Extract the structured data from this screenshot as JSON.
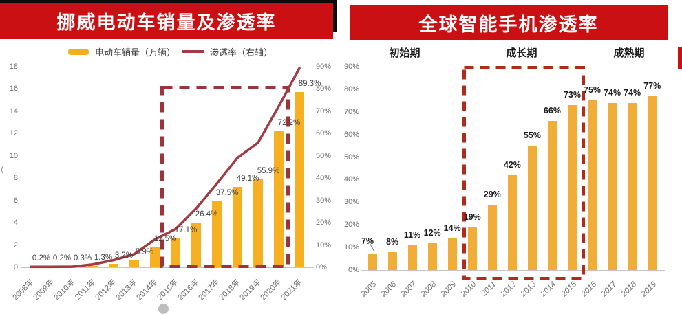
{
  "colors": {
    "banner_red": "#cb1013",
    "banner_shadow_black": "#0b0b0b",
    "title_text": "#ffffff",
    "bar_gold_left": "#f6b021",
    "bar_gold_right": "#f0ae38",
    "line_maroon": "#a13b44",
    "highlight_box_left": "#9c343a",
    "highlight_box_right": "#b02a1e",
    "axis_text_gray": "#6e6e6e",
    "axis_line_gray": "#c6c6c6"
  },
  "left_panel": {
    "title": "挪威电动车销量及渗透率",
    "legend": {
      "bar_label": "电动车销量（万辆）",
      "line_label": "渗透率（右轴）"
    },
    "cropped_axis_fragment": "（",
    "chart_data": {
      "type": "bar+line",
      "title": "挪威电动车销量及渗透率",
      "categories": [
        "2008年",
        "2009年",
        "2010年",
        "2011年",
        "2012年",
        "2013年",
        "2014年",
        "2015年",
        "2016年",
        "2017年",
        "2018年",
        "2019年",
        "2020年",
        "2021年"
      ],
      "series": [
        {
          "name": "电动车销量（万辆）",
          "type": "bar",
          "axis": "left",
          "values": [
            0.03,
            0.03,
            0.06,
            0.15,
            0.3,
            0.6,
            1.8,
            2.6,
            4.0,
            5.9,
            7.2,
            7.9,
            12.2,
            15.7
          ]
        },
        {
          "name": "渗透率（右轴）",
          "type": "line",
          "axis": "right",
          "values": [
            0.2,
            0.2,
            0.3,
            1.3,
            3.2,
            5.9,
            12.5,
            17.1,
            26.4,
            37.5,
            49.1,
            55.9,
            72.2,
            89.3
          ],
          "point_labels": [
            "0.2%",
            "0.2%",
            "0.3%",
            "1.3%",
            "3.2%",
            "5.9%",
            "12.5%",
            "17.1%",
            "26.4%",
            "37.5%",
            "49.1%",
            "55.9%",
            "72.2%",
            "89.3%"
          ]
        }
      ],
      "left_axis": {
        "min": 0,
        "max": 18,
        "step": 2,
        "suffix": ""
      },
      "right_axis": {
        "min": 0,
        "max": 90,
        "step": 10,
        "suffix": "%"
      },
      "grid": false,
      "legend_position": "top",
      "highlight_box": {
        "from": "2015年",
        "to": "2021年",
        "style": "dashed-red"
      }
    }
  },
  "right_panel": {
    "title": "全球智能手机渗透率",
    "phase_labels": [
      "初始期",
      "成长期",
      "成熟期"
    ],
    "chart_data": {
      "type": "bar",
      "title": "全球智能手机渗透率",
      "categories": [
        "2005",
        "2006",
        "2007",
        "2008",
        "2009",
        "2010",
        "2011",
        "2012",
        "2013",
        "2014",
        "2015",
        "2016",
        "2017",
        "2018",
        "2019"
      ],
      "values": [
        7,
        8,
        11,
        12,
        14,
        19,
        29,
        42,
        55,
        66,
        73,
        75,
        74,
        74,
        77
      ],
      "point_labels": [
        "7%",
        "8%",
        "11%",
        "12%",
        "14%",
        "19%",
        "29%",
        "42%",
        "55%",
        "66%",
        "73%",
        "75%",
        "74%",
        "74%",
        "77%"
      ],
      "y_axis": {
        "min": 0,
        "max": 90,
        "step": 10,
        "suffix": "%"
      },
      "grid": false,
      "highlight_box": {
        "from": "2010",
        "to": "2015",
        "style": "dashed-red"
      }
    }
  }
}
